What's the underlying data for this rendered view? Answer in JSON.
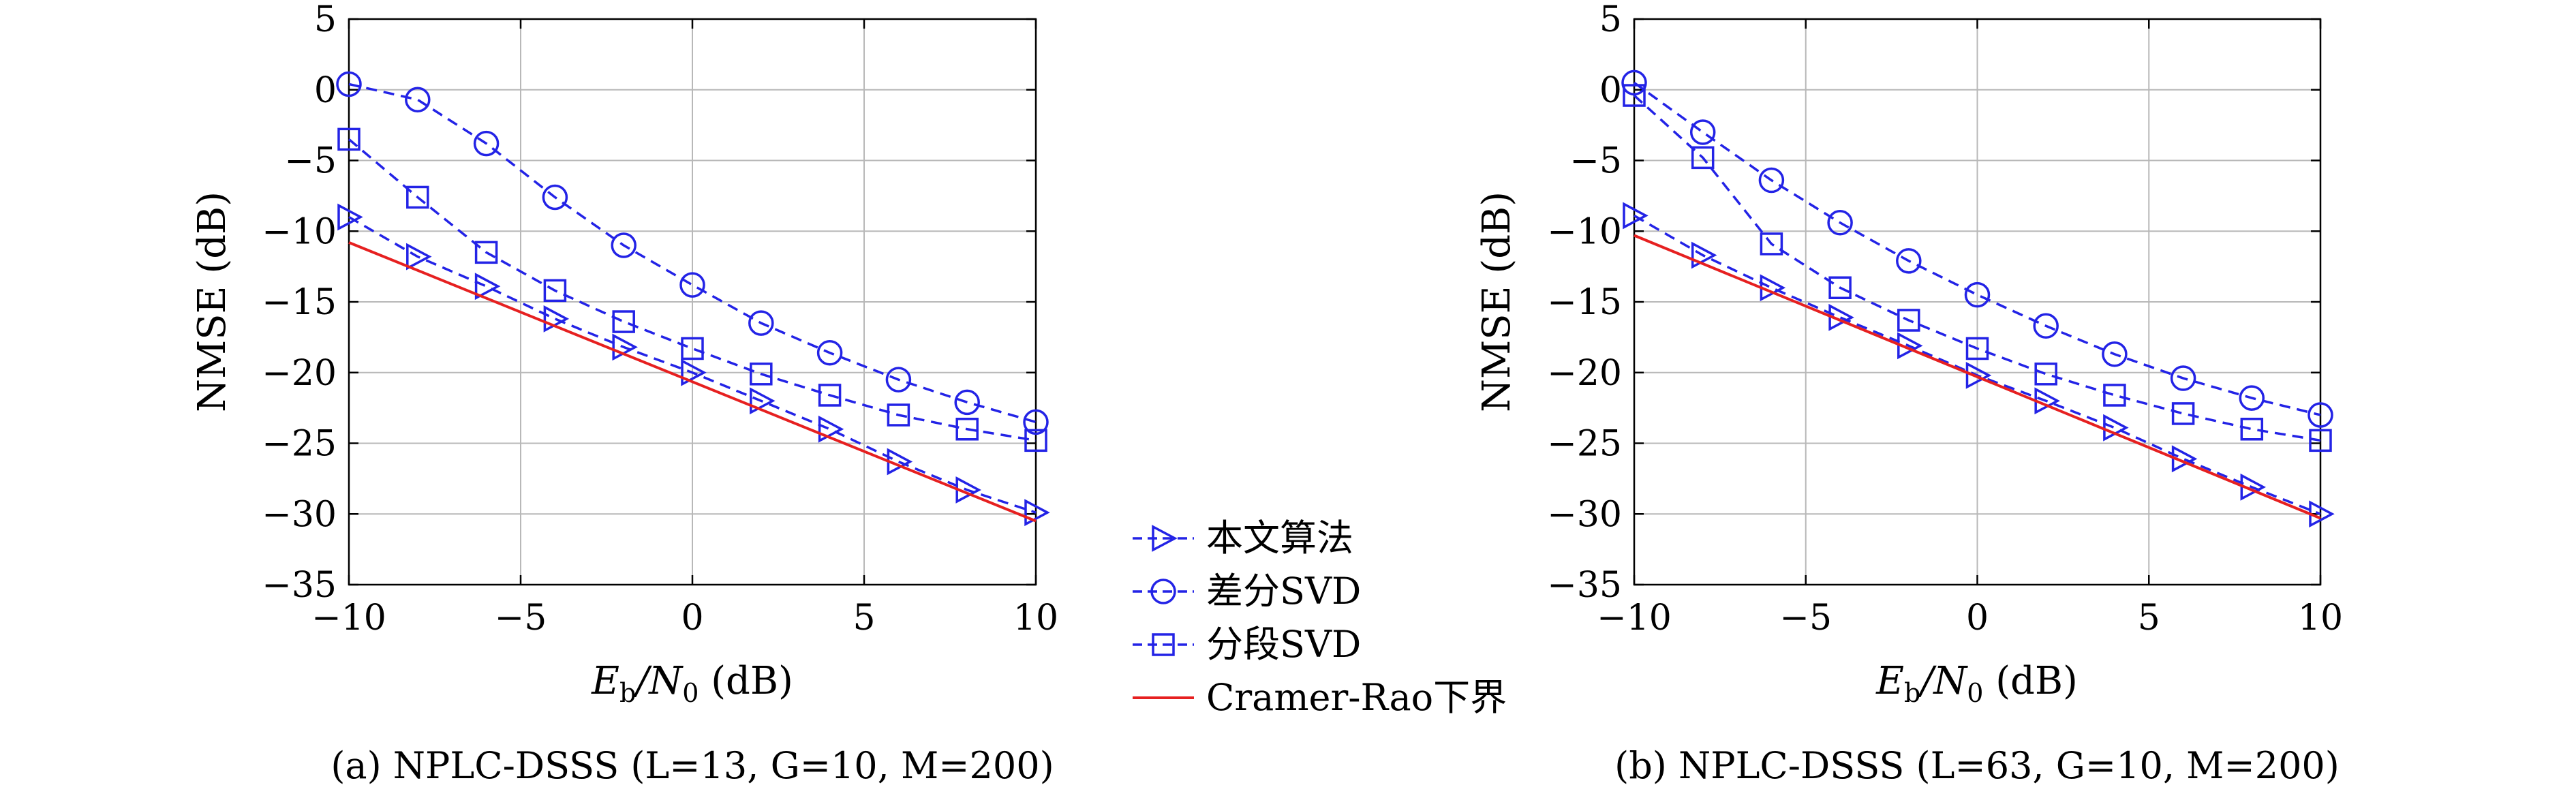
{
  "chart_data": [
    {
      "type": "line",
      "caption": "(a) NPLC-DSSS (L=13, G=10, M=200)",
      "xlabel": "Eb/N0 (dB)",
      "ylabel": "NMSE (dB)",
      "xlim": [
        -10,
        10
      ],
      "ylim": [
        -35,
        5
      ],
      "xticks": [
        -10,
        -5,
        0,
        5,
        10
      ],
      "xtick_labels": [
        "−10",
        "−5",
        "0",
        "5",
        "10"
      ],
      "yticks": [
        5,
        0,
        -5,
        -10,
        -15,
        -20,
        -25,
        -30,
        -35
      ],
      "ytick_labels": [
        "5",
        "0",
        "−5",
        "−10",
        "−15",
        "−20",
        "−25",
        "−30",
        "−35"
      ],
      "grid": true,
      "x": [
        -10,
        -8,
        -6,
        -4,
        -2,
        0,
        2,
        4,
        6,
        8,
        10
      ],
      "series": [
        {
          "name": "本文算法",
          "marker": "triangle-right",
          "color": "#2323e6",
          "dashed": true,
          "values": [
            -9.0,
            -11.8,
            -13.9,
            -16.2,
            -18.2,
            -20.0,
            -22.0,
            -24.0,
            -26.3,
            -28.3,
            -29.9
          ]
        },
        {
          "name": "差分SVD",
          "marker": "circle",
          "color": "#2323e6",
          "dashed": true,
          "values": [
            0.4,
            -0.7,
            -3.8,
            -7.6,
            -11.0,
            -13.8,
            -16.5,
            -18.6,
            -20.5,
            -22.1,
            -23.5
          ]
        },
        {
          "name": "分段SVD",
          "marker": "square",
          "color": "#2323e6",
          "dashed": true,
          "values": [
            -3.5,
            -7.6,
            -11.5,
            -14.2,
            -16.4,
            -18.3,
            -20.1,
            -21.6,
            -23.0,
            -24.0,
            -24.8
          ]
        },
        {
          "name": "Cramer-Rao下界",
          "marker": "none",
          "color": "#e62020",
          "dashed": false,
          "x_line": [
            -10,
            10
          ],
          "values_line": [
            -10.8,
            -30.5
          ]
        }
      ]
    },
    {
      "type": "line",
      "caption": "(b) NPLC-DSSS (L=63, G=10, M=200)",
      "xlabel": "Eb/N0 (dB)",
      "ylabel": "NMSE (dB)",
      "xlim": [
        -10,
        10
      ],
      "ylim": [
        -35,
        5
      ],
      "xticks": [
        -10,
        -5,
        0,
        5,
        10
      ],
      "xtick_labels": [
        "−10",
        "−5",
        "0",
        "5",
        "10"
      ],
      "yticks": [
        5,
        0,
        -5,
        -10,
        -15,
        -20,
        -25,
        -30,
        -35
      ],
      "ytick_labels": [
        "5",
        "0",
        "−5",
        "−10",
        "−15",
        "−20",
        "−25",
        "−30",
        "−35"
      ],
      "grid": true,
      "x": [
        -10,
        -8,
        -6,
        -4,
        -2,
        0,
        2,
        4,
        6,
        8,
        10
      ],
      "series": [
        {
          "name": "本文算法",
          "marker": "triangle-right",
          "color": "#2323e6",
          "dashed": true,
          "values": [
            -8.9,
            -11.7,
            -14.0,
            -16.1,
            -18.1,
            -20.2,
            -22.0,
            -23.9,
            -26.1,
            -28.1,
            -30.0
          ]
        },
        {
          "name": "差分SVD",
          "marker": "circle",
          "color": "#2323e6",
          "dashed": true,
          "values": [
            0.5,
            -3.0,
            -6.4,
            -9.4,
            -12.1,
            -14.5,
            -16.7,
            -18.7,
            -20.4,
            -21.8,
            -23.0
          ]
        },
        {
          "name": "分段SVD",
          "marker": "square",
          "color": "#2323e6",
          "dashed": true,
          "values": [
            -0.4,
            -4.8,
            -10.9,
            -14.0,
            -16.3,
            -18.3,
            -20.1,
            -21.6,
            -22.9,
            -24.0,
            -24.8
          ]
        },
        {
          "name": "Cramer-Rao下界",
          "marker": "none",
          "color": "#e62020",
          "dashed": false,
          "x_line": [
            -10,
            10
          ],
          "values_line": [
            -10.3,
            -30.3
          ]
        }
      ]
    }
  ],
  "legend": {
    "placement": "between panels, bottom",
    "entries": [
      {
        "label": "本文算法",
        "marker": "triangle-right",
        "color": "#2323e6",
        "dashed": true
      },
      {
        "label": "差分SVD",
        "marker": "circle",
        "color": "#2323e6",
        "dashed": true
      },
      {
        "label": "分段SVD",
        "marker": "square",
        "color": "#2323e6",
        "dashed": true
      },
      {
        "label": "Cramer-Rao下界",
        "marker": "none",
        "color": "#e62020",
        "dashed": false
      }
    ]
  }
}
